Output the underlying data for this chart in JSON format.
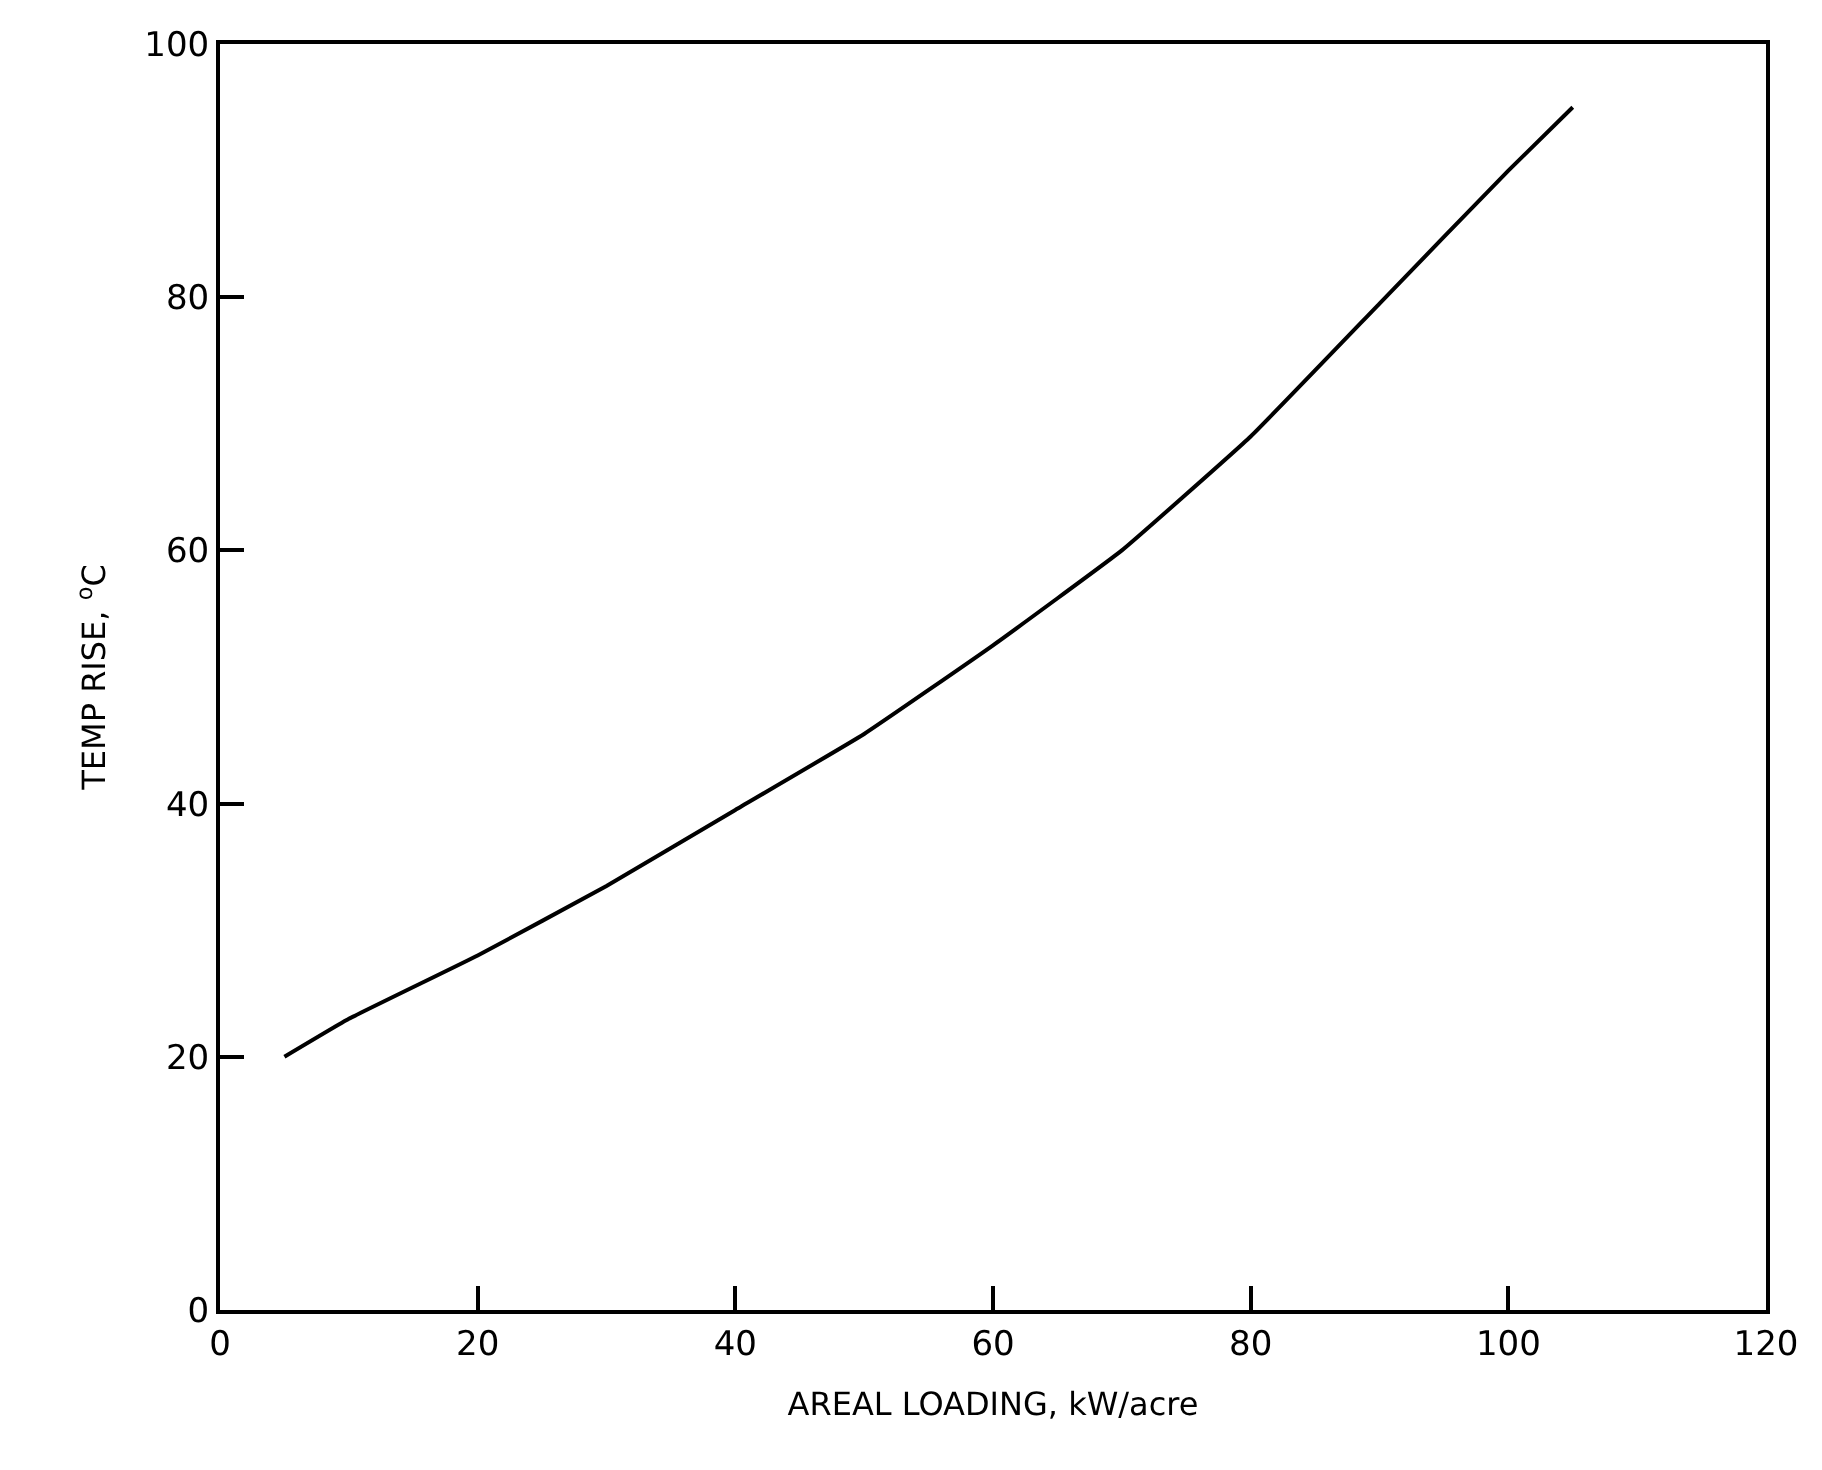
{
  "chart_data": {
    "type": "line",
    "xlabel": "AREAL LOADING, kW/acre",
    "ylabel": "TEMP RISE, $^{o}$C",
    "x": [
      5,
      10,
      20,
      30,
      40,
      50,
      60,
      70,
      80,
      90,
      100,
      105
    ],
    "series": [
      {
        "color": "#000000",
        "values": [
          20,
          23,
          28,
          33.5,
          39.5,
          45.5,
          52.5,
          60,
          69,
          79.5,
          90,
          95
        ]
      }
    ],
    "xlim": [
      0,
      120
    ],
    "ylim": [
      0,
      100
    ],
    "xticks": [
      0,
      20,
      40,
      60,
      80,
      100,
      120
    ],
    "yticks": [
      0,
      20,
      40,
      60,
      80,
      100
    ],
    "marker": "none",
    "line_style": "solid"
  }
}
